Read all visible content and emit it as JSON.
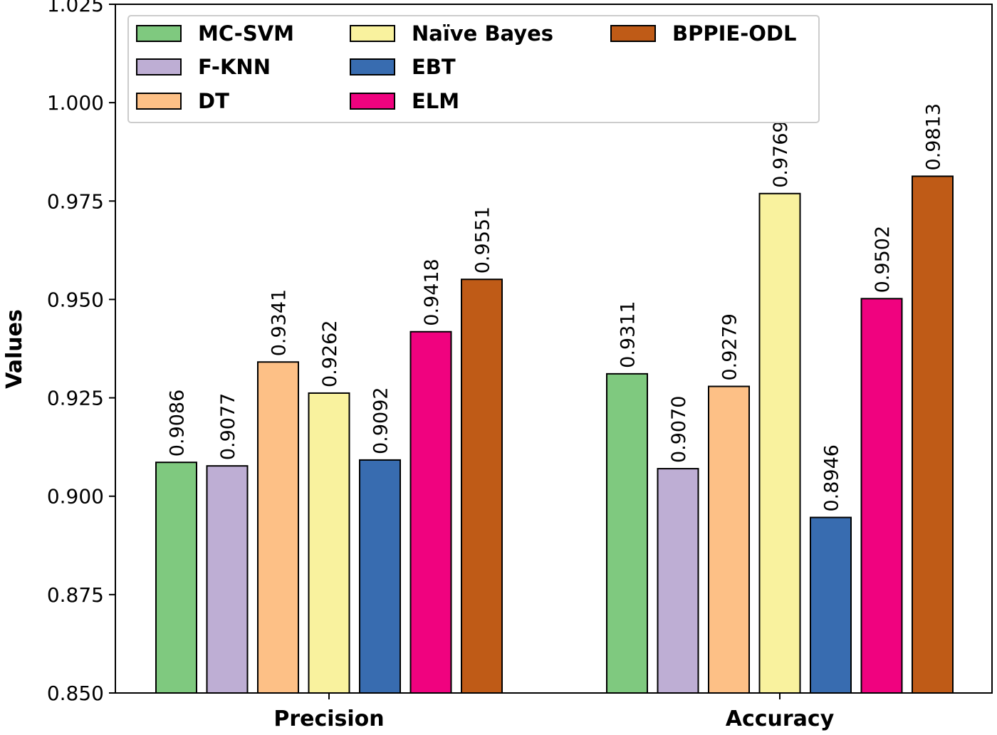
{
  "chart_data": {
    "type": "bar",
    "title": "",
    "xlabel": "",
    "ylabel": "Values",
    "ylim": [
      0.85,
      1.025
    ],
    "yticks": [
      "0.850",
      "0.875",
      "0.900",
      "0.925",
      "0.950",
      "0.975",
      "1.000",
      "1.025"
    ],
    "categories": [
      "Precision",
      "Accuracy"
    ],
    "legend_position": "top-left",
    "series": [
      {
        "name": "MC-SVM",
        "color": "#7fc97f",
        "values": [
          0.9086,
          0.9311
        ],
        "labels": [
          "0.9086",
          "0.9311"
        ]
      },
      {
        "name": "F-KNN",
        "color": "#beaed4",
        "values": [
          0.9077,
          0.907
        ],
        "labels": [
          "0.9077",
          "0.9070"
        ]
      },
      {
        "name": "DT",
        "color": "#fdc086",
        "values": [
          0.9341,
          0.9279
        ],
        "labels": [
          "0.9341",
          "0.9279"
        ]
      },
      {
        "name": "Naïve Bayes",
        "color": "#f9f29e",
        "values": [
          0.9262,
          0.9769
        ],
        "labels": [
          "0.9262",
          "0.9769"
        ]
      },
      {
        "name": "EBT",
        "color": "#386cb0",
        "values": [
          0.9092,
          0.8946
        ],
        "labels": [
          "0.9092",
          "0.8946"
        ]
      },
      {
        "name": "ELM",
        "color": "#f0027f",
        "values": [
          0.9418,
          0.9502
        ],
        "labels": [
          "0.9418",
          "0.9502"
        ]
      },
      {
        "name": "BPPIE-ODL",
        "color": "#bf5b17",
        "values": [
          0.9551,
          0.9813
        ],
        "labels": [
          "0.9551",
          "0.9813"
        ]
      }
    ]
  }
}
